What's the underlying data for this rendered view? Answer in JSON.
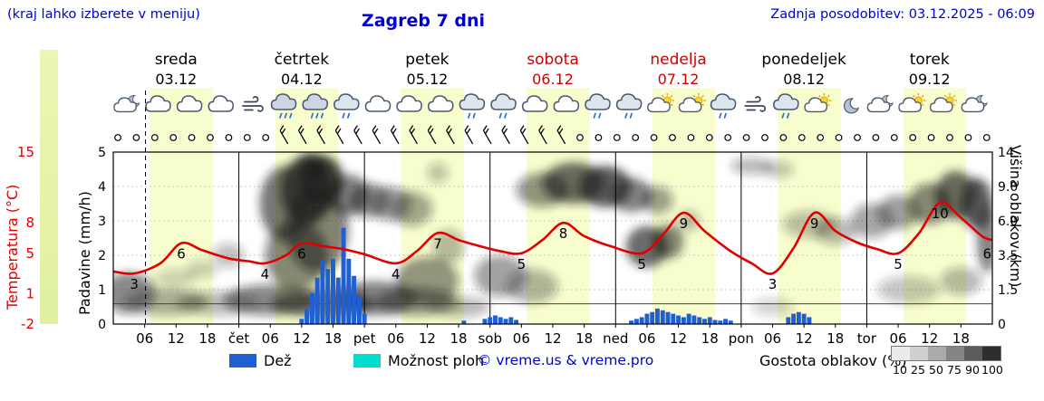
{
  "header": {
    "hint": "(kraj lahko izberete v meniju)",
    "title": "Zagreb 7 dni",
    "updated": "Zadnja posodobitev: 03.12.2025 - 06:09"
  },
  "days": [
    {
      "name": "sreda",
      "date": "03.12",
      "highlight": false
    },
    {
      "name": "četrtek",
      "date": "04.12",
      "highlight": false
    },
    {
      "name": "petek",
      "date": "05.12",
      "highlight": false
    },
    {
      "name": "sobota",
      "date": "06.12",
      "highlight": true
    },
    {
      "name": "nedelja",
      "date": "07.12",
      "highlight": true
    },
    {
      "name": "ponedeljek",
      "date": "08.12",
      "highlight": false
    },
    {
      "name": "torek",
      "date": "09.12",
      "highlight": false
    }
  ],
  "axes": {
    "temperature": {
      "label": "Temperatura (°C)",
      "ticks": [
        15,
        8,
        5,
        1,
        -2
      ],
      "range": [
        -2,
        15
      ]
    },
    "precipitation": {
      "label": "Padavine (mm/h)",
      "ticks": [
        0,
        1,
        2,
        3,
        4,
        5
      ],
      "range": [
        0,
        5
      ]
    },
    "cloud_height": {
      "label": "Višina oblakov (km)",
      "ticks": [
        "14",
        "9.0",
        "6.0",
        "3.5",
        "1.5",
        "0"
      ]
    }
  },
  "xticks": [
    "06",
    "12",
    "18",
    "čet",
    "06",
    "12",
    "18",
    "pet",
    "06",
    "12",
    "18",
    "sob",
    "06",
    "12",
    "18",
    "ned",
    "06",
    "12",
    "18",
    "pon",
    "06",
    "12",
    "18",
    "tor",
    "06",
    "12",
    "18"
  ],
  "weather_icons": [
    "moon-cloud",
    "cloud",
    "cloud",
    "cloud",
    "wind",
    "rain",
    "rain",
    "drizzle",
    "cloud",
    "cloud",
    "cloud",
    "drizzle",
    "drizzle",
    "cloud",
    "cloud",
    "drizzle",
    "drizzle",
    "sun-cloud",
    "sun-cloud",
    "drizzle",
    "wind",
    "drizzle",
    "sun-cloud",
    "moon",
    "moon-cloud",
    "sun-cloud",
    "sun-cloud",
    "moon-cloud"
  ],
  "wind_row": "ooooooooobbbbbbbbbbbbbbbbooooooooooooooooooooooo",
  "legend": {
    "rain": "Dež",
    "showers": "Možnost ploh",
    "copyright": "© vreme.us & vreme.pro",
    "clouddensity": "Gostota oblakov (%)",
    "density_ticks": [
      10,
      25,
      50,
      75,
      90,
      100
    ]
  },
  "colors": {
    "accent_blue": "#0000cc",
    "weekend_red": "#cc0000",
    "temperature_line": "#e00000",
    "rain_bar": "#1f5fd2",
    "showers_swatch": "#00ddcc",
    "daylight_band": "#f8fdce",
    "colorbar_top": "#edf6b4",
    "colorbar_bottom": "#dff0a1",
    "density_grays": [
      "#ebebeb",
      "#cfcfcf",
      "#ababab",
      "#858585",
      "#5c5c5c",
      "#2e2e2e"
    ]
  },
  "chart_data": {
    "type": "meteogram",
    "hours_total": 168,
    "now_hour": 6.15,
    "freezing_line_temp": 0,
    "daylight_bands": [
      [
        7,
        19
      ],
      [
        31,
        43
      ],
      [
        55,
        67
      ],
      [
        79,
        91
      ],
      [
        103,
        115
      ],
      [
        127,
        139
      ],
      [
        151,
        163
      ]
    ],
    "temperature_series": {
      "name": "Temperatura (°C)",
      "points": [
        [
          0,
          3.2
        ],
        [
          4,
          3
        ],
        [
          9,
          4
        ],
        [
          13,
          6
        ],
        [
          17,
          5.3
        ],
        [
          22,
          4.5
        ],
        [
          26,
          4.2
        ],
        [
          29,
          4
        ],
        [
          33,
          4.8
        ],
        [
          36,
          6
        ],
        [
          40,
          5.7
        ],
        [
          44,
          5.4
        ],
        [
          48,
          4.9
        ],
        [
          54,
          4
        ],
        [
          58,
          5.2
        ],
        [
          62,
          7
        ],
        [
          66,
          6.3
        ],
        [
          70,
          5.7
        ],
        [
          74,
          5.2
        ],
        [
          78,
          5
        ],
        [
          82,
          6.3
        ],
        [
          86,
          8
        ],
        [
          90,
          6.7
        ],
        [
          95,
          5.7
        ],
        [
          101,
          5
        ],
        [
          105,
          6.8
        ],
        [
          109,
          9
        ],
        [
          113,
          7.2
        ],
        [
          118,
          5.2
        ],
        [
          122,
          4
        ],
        [
          126,
          3
        ],
        [
          130,
          5.5
        ],
        [
          134,
          9
        ],
        [
          138,
          7.2
        ],
        [
          142,
          6.1
        ],
        [
          146,
          5.4
        ],
        [
          150,
          5
        ],
        [
          154,
          7
        ],
        [
          158,
          10
        ],
        [
          162,
          8.5
        ],
        [
          166,
          6.7
        ],
        [
          168,
          6.3
        ]
      ]
    },
    "temperature_labels": [
      [
        4,
        3
      ],
      [
        13,
        6
      ],
      [
        29,
        4
      ],
      [
        36,
        6
      ],
      [
        54,
        4
      ],
      [
        62,
        7
      ],
      [
        78,
        5
      ],
      [
        86,
        8
      ],
      [
        101,
        5
      ],
      [
        109,
        9
      ],
      [
        126,
        3
      ],
      [
        134,
        9
      ],
      [
        150,
        5
      ],
      [
        158,
        10
      ],
      [
        167,
        6
      ]
    ],
    "rain_bars": [
      [
        36,
        0.15
      ],
      [
        37,
        0.45
      ],
      [
        38,
        0.9
      ],
      [
        39,
        1.35
      ],
      [
        40,
        1.85
      ],
      [
        41,
        1.6
      ],
      [
        42,
        1.9
      ],
      [
        43,
        1.35
      ],
      [
        44,
        2.8
      ],
      [
        45,
        1.9
      ],
      [
        46,
        1.4
      ],
      [
        47,
        0.8
      ],
      [
        48,
        0.3
      ],
      [
        67,
        0.1
      ],
      [
        71,
        0.15
      ],
      [
        72,
        0.2
      ],
      [
        73,
        0.25
      ],
      [
        74,
        0.2
      ],
      [
        75,
        0.15
      ],
      [
        76,
        0.2
      ],
      [
        77,
        0.12
      ],
      [
        99,
        0.1
      ],
      [
        100,
        0.15
      ],
      [
        101,
        0.2
      ],
      [
        102,
        0.3
      ],
      [
        103,
        0.35
      ],
      [
        104,
        0.45
      ],
      [
        105,
        0.4
      ],
      [
        106,
        0.35
      ],
      [
        107,
        0.3
      ],
      [
        108,
        0.25
      ],
      [
        109,
        0.2
      ],
      [
        110,
        0.3
      ],
      [
        111,
        0.25
      ],
      [
        112,
        0.2
      ],
      [
        113,
        0.15
      ],
      [
        114,
        0.2
      ],
      [
        115,
        0.12
      ],
      [
        116,
        0.1
      ],
      [
        117,
        0.15
      ],
      [
        118,
        0.1
      ],
      [
        129,
        0.2
      ],
      [
        130,
        0.3
      ],
      [
        131,
        0.35
      ],
      [
        132,
        0.3
      ],
      [
        133,
        0.2
      ]
    ],
    "clouds": [
      [
        3,
        0.82,
        5,
        0.12,
        0.5
      ],
      [
        10,
        0.87,
        8,
        0.08,
        0.35
      ],
      [
        20,
        0.88,
        8,
        0.07,
        0.3
      ],
      [
        30,
        0.86,
        9,
        0.09,
        0.5
      ],
      [
        40,
        0.88,
        10,
        0.08,
        0.55
      ],
      [
        50,
        0.85,
        8,
        0.1,
        0.55
      ],
      [
        58,
        0.87,
        8,
        0.08,
        0.45
      ],
      [
        66,
        0.9,
        6,
        0.06,
        0.3
      ],
      [
        12,
        0.73,
        4,
        0.05,
        0.2
      ],
      [
        17,
        0.68,
        3,
        0.05,
        0.22
      ],
      [
        22,
        0.6,
        3,
        0.07,
        0.28
      ],
      [
        33,
        0.3,
        5,
        0.22,
        0.6
      ],
      [
        37,
        0.22,
        5,
        0.2,
        0.75
      ],
      [
        40,
        0.17,
        4,
        0.15,
        0.8
      ],
      [
        39,
        0.45,
        6,
        0.25,
        0.55
      ],
      [
        45,
        0.25,
        4,
        0.12,
        0.55
      ],
      [
        49,
        0.28,
        4,
        0.1,
        0.45
      ],
      [
        53,
        0.3,
        4,
        0.1,
        0.4
      ],
      [
        35,
        0.6,
        6,
        0.2,
        0.5
      ],
      [
        38,
        0.08,
        3,
        0.08,
        0.65
      ],
      [
        57,
        0.33,
        4,
        0.1,
        0.38
      ],
      [
        62,
        0.12,
        2,
        0.06,
        0.25
      ],
      [
        60,
        0.75,
        6,
        0.14,
        0.45
      ],
      [
        64,
        0.55,
        3,
        0.1,
        0.3
      ],
      [
        74,
        0.72,
        5,
        0.12,
        0.4
      ],
      [
        80,
        0.78,
        5,
        0.1,
        0.32
      ],
      [
        82,
        0.22,
        5,
        0.1,
        0.45
      ],
      [
        88,
        0.18,
        6,
        0.12,
        0.65
      ],
      [
        94,
        0.2,
        5,
        0.12,
        0.7
      ],
      [
        99,
        0.25,
        4,
        0.1,
        0.55
      ],
      [
        104,
        0.28,
        3,
        0.08,
        0.4
      ],
      [
        102,
        0.55,
        4,
        0.12,
        0.65
      ],
      [
        106,
        0.52,
        3,
        0.1,
        0.55
      ],
      [
        110,
        0.4,
        2,
        0.06,
        0.3
      ],
      [
        122,
        0.08,
        4,
        0.05,
        0.3
      ],
      [
        127,
        0.1,
        3,
        0.05,
        0.25
      ],
      [
        133,
        0.42,
        5,
        0.08,
        0.28
      ],
      [
        138,
        0.46,
        4,
        0.08,
        0.3
      ],
      [
        126,
        0.9,
        4,
        0.05,
        0.2
      ],
      [
        145,
        0.4,
        4,
        0.1,
        0.38
      ],
      [
        150,
        0.35,
        4,
        0.1,
        0.42
      ],
      [
        156,
        0.3,
        4,
        0.12,
        0.5
      ],
      [
        161,
        0.25,
        4,
        0.14,
        0.65
      ],
      [
        165,
        0.3,
        3,
        0.15,
        0.7
      ],
      [
        167,
        0.5,
        2,
        0.2,
        0.55
      ],
      [
        152,
        0.8,
        6,
        0.08,
        0.25
      ],
      [
        162,
        0.75,
        4,
        0.08,
        0.3
      ]
    ]
  }
}
